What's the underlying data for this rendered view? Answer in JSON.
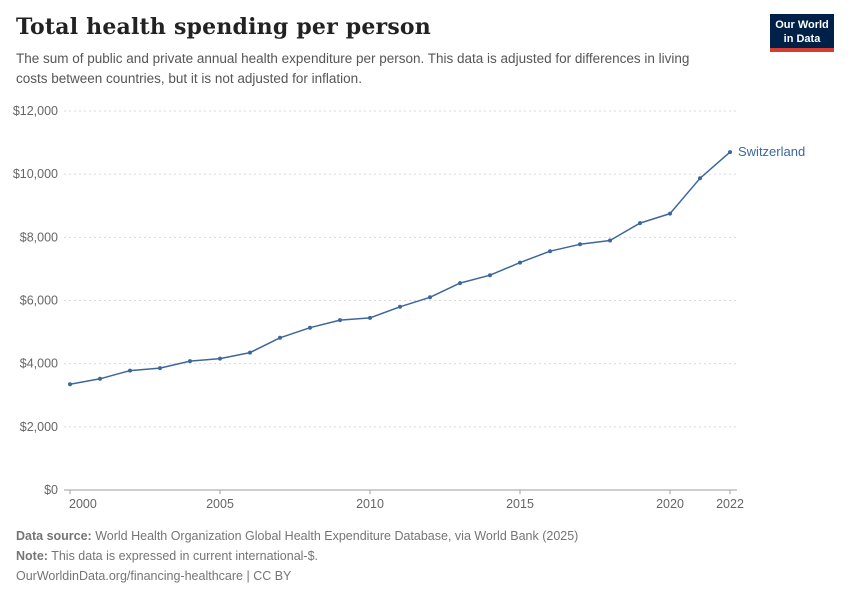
{
  "header": {
    "title": "Total health spending per person",
    "subtitle": "The sum of public and private annual health expenditure per person. This data is adjusted for differences in living costs between countries, but it is not adjusted for inflation.",
    "logo": {
      "line1": "Our World",
      "line2": "in Data",
      "bg": "#002147",
      "accent": "#d73c32"
    }
  },
  "chart_data": {
    "type": "line",
    "title": "Total health spending per person",
    "x": [
      2000,
      2001,
      2002,
      2003,
      2004,
      2005,
      2006,
      2007,
      2008,
      2009,
      2010,
      2011,
      2012,
      2013,
      2014,
      2015,
      2016,
      2017,
      2018,
      2019,
      2020,
      2021,
      2022
    ],
    "series": [
      {
        "name": "Switzerland",
        "color": "#3d679c",
        "values": [
          3350,
          3520,
          3780,
          3860,
          4080,
          4160,
          4350,
          4820,
          5140,
          5380,
          5450,
          5800,
          6100,
          6550,
          6800,
          7200,
          7560,
          7780,
          7900,
          8450,
          8750,
          9870,
          10700
        ]
      }
    ],
    "xlim": [
      2000,
      2022
    ],
    "ylim": [
      0,
      12000
    ],
    "yticks": [
      {
        "v": 0,
        "label": "$0"
      },
      {
        "v": 2000,
        "label": "$2,000"
      },
      {
        "v": 4000,
        "label": "$4,000"
      },
      {
        "v": 6000,
        "label": "$6,000"
      },
      {
        "v": 8000,
        "label": "$8,000"
      },
      {
        "v": 10000,
        "label": "$10,000"
      },
      {
        "v": 12000,
        "label": "$12,000"
      }
    ],
    "xticks": [
      {
        "v": 2000,
        "label": "2000"
      },
      {
        "v": 2005,
        "label": "2005"
      },
      {
        "v": 2010,
        "label": "2010"
      },
      {
        "v": 2015,
        "label": "2015"
      },
      {
        "v": 2020,
        "label": "2020"
      },
      {
        "v": 2022,
        "label": "2022"
      }
    ],
    "grid": "horizontal-dashed",
    "legend": "line-end-label",
    "axis_color": "#9e9e9e",
    "grid_color": "#d9d9d9"
  },
  "footer": {
    "datasource_label": "Data source:",
    "datasource_text": "World Health Organization Global Health Expenditure Database, via World Bank (2025)",
    "note_label": "Note:",
    "note_text": "This data is expressed in current international-$.",
    "link": "OurWorldinData.org/financing-healthcare",
    "license": "| CC BY"
  }
}
